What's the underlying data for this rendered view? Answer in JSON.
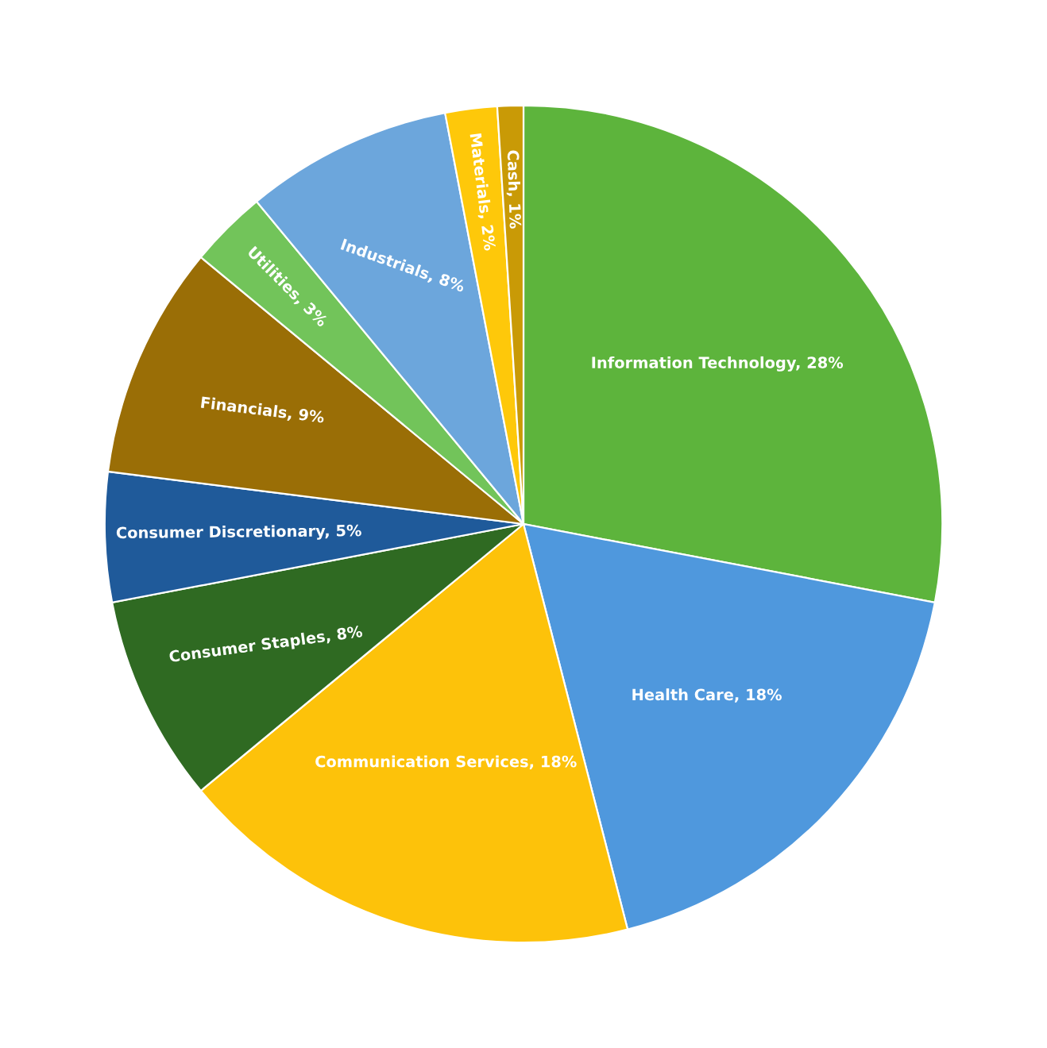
{
  "chart_data": {
    "type": "pie",
    "categories": [
      "Information Technology",
      "Health Care",
      "Communication Services",
      "Consumer Staples",
      "Consumer Discretionary",
      "Financials",
      "Utilities",
      "Industrials",
      "Materials",
      "Cash"
    ],
    "values": [
      28,
      18,
      18,
      8,
      5,
      9,
      3,
      8,
      2,
      1
    ],
    "value_labels": [
      "28%",
      "18%",
      "18%",
      "8%",
      "5%",
      "9%",
      "3%",
      "8%",
      "2%",
      "1%"
    ],
    "colors": [
      "#5db43c",
      "#4f98dd",
      "#fdc20a",
      "#2f6a22",
      "#1f5a9a",
      "#9a6e06",
      "#72c45a",
      "#6ca6dc",
      "#fec80a",
      "#c99a06"
    ],
    "legend": false
  }
}
